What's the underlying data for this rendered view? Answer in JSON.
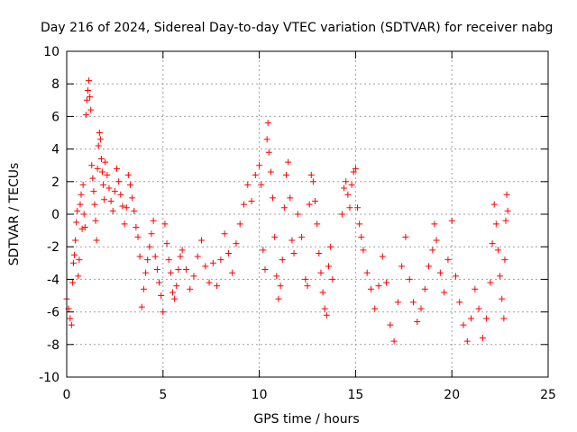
{
  "chart_data": {
    "type": "scatter",
    "title": "Day 216 of 2024, Sidereal Day-to-day VTEC variation (SDTVAR) for receiver nabg",
    "xlabel": "GPS time / hours",
    "ylabel": "SDTVAR / TECUs",
    "xlim": [
      0,
      25
    ],
    "ylim": [
      -10,
      10
    ],
    "xticks": [
      0,
      5,
      10,
      15,
      20,
      25
    ],
    "yticks": [
      -10,
      -8,
      -6,
      -4,
      -2,
      0,
      2,
      4,
      6,
      8,
      10
    ],
    "xtick_labels": [
      "0",
      "5",
      "10",
      "15",
      "20",
      "25"
    ],
    "ytick_labels": [
      "-10",
      "-8",
      "-6",
      "-4",
      "-2",
      "0",
      "2",
      "4",
      "6",
      "8",
      "10"
    ],
    "grid": true,
    "marker": "+",
    "color": "#ff0000",
    "series": [
      {
        "name": "SDTVAR",
        "points": [
          [
            0.0,
            -5.2
          ],
          [
            0.1,
            -5.8
          ],
          [
            0.18,
            -6.4
          ],
          [
            0.25,
            -6.8
          ],
          [
            0.3,
            -4.2
          ],
          [
            0.35,
            -3.0
          ],
          [
            0.4,
            -2.5
          ],
          [
            0.45,
            -1.6
          ],
          [
            0.5,
            -0.5
          ],
          [
            0.55,
            0.2
          ],
          [
            0.6,
            -3.8
          ],
          [
            0.65,
            -2.8
          ],
          [
            0.7,
            0.6
          ],
          [
            0.75,
            1.2
          ],
          [
            0.8,
            -0.9
          ],
          [
            0.85,
            1.8
          ],
          [
            0.9,
            0.0
          ],
          [
            0.95,
            -0.8
          ],
          [
            1.0,
            6.1
          ],
          [
            1.05,
            7.0
          ],
          [
            1.1,
            7.6
          ],
          [
            1.15,
            8.2
          ],
          [
            1.2,
            7.2
          ],
          [
            1.25,
            6.4
          ],
          [
            1.3,
            3.0
          ],
          [
            1.35,
            2.2
          ],
          [
            1.4,
            1.4
          ],
          [
            1.45,
            0.6
          ],
          [
            1.5,
            -0.4
          ],
          [
            1.55,
            -1.6
          ],
          [
            1.6,
            2.8
          ],
          [
            1.65,
            4.2
          ],
          [
            1.7,
            5.0
          ],
          [
            1.75,
            4.6
          ],
          [
            1.8,
            3.4
          ],
          [
            1.85,
            2.6
          ],
          [
            1.9,
            1.8
          ],
          [
            1.95,
            0.9
          ],
          [
            2.0,
            3.2
          ],
          [
            2.1,
            2.4
          ],
          [
            2.2,
            1.6
          ],
          [
            2.3,
            0.8
          ],
          [
            2.4,
            0.2
          ],
          [
            2.5,
            1.4
          ],
          [
            2.6,
            2.8
          ],
          [
            2.7,
            2.0
          ],
          [
            2.8,
            1.2
          ],
          [
            2.9,
            0.5
          ],
          [
            3.0,
            -0.6
          ],
          [
            3.1,
            0.4
          ],
          [
            3.2,
            2.4
          ],
          [
            3.3,
            1.8
          ],
          [
            3.4,
            1.0
          ],
          [
            3.5,
            0.2
          ],
          [
            3.6,
            -0.8
          ],
          [
            3.7,
            -1.4
          ],
          [
            3.8,
            -2.6
          ],
          [
            3.9,
            -5.7
          ],
          [
            4.0,
            -4.6
          ],
          [
            4.1,
            -3.6
          ],
          [
            4.2,
            -2.8
          ],
          [
            4.3,
            -2.0
          ],
          [
            4.4,
            -1.2
          ],
          [
            4.5,
            -0.4
          ],
          [
            4.6,
            -2.6
          ],
          [
            4.7,
            -3.4
          ],
          [
            4.8,
            -4.2
          ],
          [
            4.9,
            -5.0
          ],
          [
            5.0,
            -6.0
          ],
          [
            5.1,
            -0.6
          ],
          [
            5.2,
            -1.8
          ],
          [
            5.3,
            -2.8
          ],
          [
            5.4,
            -3.6
          ],
          [
            5.5,
            -4.8
          ],
          [
            5.6,
            -5.2
          ],
          [
            5.7,
            -4.4
          ],
          [
            5.8,
            -3.4
          ],
          [
            5.9,
            -2.6
          ],
          [
            6.0,
            -2.2
          ],
          [
            6.2,
            -3.4
          ],
          [
            6.4,
            -4.6
          ],
          [
            6.6,
            -3.8
          ],
          [
            6.8,
            -2.6
          ],
          [
            7.0,
            -1.6
          ],
          [
            7.2,
            -3.2
          ],
          [
            7.4,
            -4.2
          ],
          [
            7.6,
            -3.0
          ],
          [
            7.8,
            -4.4
          ],
          [
            8.0,
            -2.8
          ],
          [
            8.2,
            -1.2
          ],
          [
            8.4,
            -2.4
          ],
          [
            8.6,
            -3.6
          ],
          [
            8.8,
            -1.8
          ],
          [
            9.0,
            -0.6
          ],
          [
            9.2,
            0.6
          ],
          [
            9.4,
            1.8
          ],
          [
            9.6,
            0.8
          ],
          [
            9.8,
            2.4
          ],
          [
            10.0,
            3.0
          ],
          [
            10.1,
            1.8
          ],
          [
            10.2,
            -2.2
          ],
          [
            10.3,
            -3.4
          ],
          [
            10.4,
            4.6
          ],
          [
            10.45,
            5.6
          ],
          [
            10.5,
            3.8
          ],
          [
            10.6,
            2.6
          ],
          [
            10.7,
            1.0
          ],
          [
            10.8,
            -1.4
          ],
          [
            10.9,
            -3.8
          ],
          [
            11.0,
            -5.2
          ],
          [
            11.1,
            -4.4
          ],
          [
            11.2,
            -2.8
          ],
          [
            11.3,
            0.4
          ],
          [
            11.4,
            2.4
          ],
          [
            11.5,
            3.2
          ],
          [
            11.6,
            1.0
          ],
          [
            11.7,
            -1.6
          ],
          [
            11.8,
            -2.4
          ],
          [
            12.0,
            0.0
          ],
          [
            12.2,
            -1.4
          ],
          [
            12.4,
            -4.0
          ],
          [
            12.5,
            -4.4
          ],
          [
            12.6,
            0.6
          ],
          [
            12.7,
            2.4
          ],
          [
            12.8,
            2.0
          ],
          [
            12.9,
            0.8
          ],
          [
            13.0,
            -0.6
          ],
          [
            13.1,
            -2.4
          ],
          [
            13.2,
            -3.6
          ],
          [
            13.3,
            -4.8
          ],
          [
            13.4,
            -5.8
          ],
          [
            13.5,
            -6.2
          ],
          [
            13.6,
            -3.2
          ],
          [
            13.7,
            -2.0
          ],
          [
            13.8,
            -4.0
          ],
          [
            14.3,
            0.0
          ],
          [
            14.4,
            1.6
          ],
          [
            14.5,
            2.0
          ],
          [
            14.6,
            1.2
          ],
          [
            14.7,
            0.4
          ],
          [
            14.8,
            1.8
          ],
          [
            14.9,
            2.6
          ],
          [
            15.0,
            2.8
          ],
          [
            15.1,
            0.4
          ],
          [
            15.2,
            -0.6
          ],
          [
            15.3,
            -1.4
          ],
          [
            15.4,
            -2.2
          ],
          [
            15.6,
            -3.6
          ],
          [
            15.8,
            -4.6
          ],
          [
            16.0,
            -5.8
          ],
          [
            16.2,
            -4.4
          ],
          [
            16.4,
            -2.6
          ],
          [
            16.6,
            -4.2
          ],
          [
            16.8,
            -6.8
          ],
          [
            17.0,
            -7.8
          ],
          [
            17.2,
            -5.4
          ],
          [
            17.4,
            -3.2
          ],
          [
            17.6,
            -1.4
          ],
          [
            17.8,
            -4.0
          ],
          [
            18.0,
            -5.4
          ],
          [
            18.2,
            -6.6
          ],
          [
            18.4,
            -5.8
          ],
          [
            18.6,
            -4.6
          ],
          [
            18.8,
            -3.2
          ],
          [
            19.0,
            -2.2
          ],
          [
            19.1,
            -0.6
          ],
          [
            19.2,
            -1.6
          ],
          [
            19.4,
            -3.6
          ],
          [
            19.6,
            -4.8
          ],
          [
            19.8,
            -2.8
          ],
          [
            20.0,
            -0.4
          ],
          [
            20.2,
            -3.8
          ],
          [
            20.4,
            -5.4
          ],
          [
            20.6,
            -6.8
          ],
          [
            20.8,
            -7.8
          ],
          [
            21.0,
            -6.4
          ],
          [
            21.2,
            -4.6
          ],
          [
            21.4,
            -5.8
          ],
          [
            21.6,
            -7.6
          ],
          [
            21.8,
            -6.4
          ],
          [
            22.0,
            -4.2
          ],
          [
            22.1,
            -1.8
          ],
          [
            22.2,
            0.6
          ],
          [
            22.3,
            -0.6
          ],
          [
            22.4,
            -2.2
          ],
          [
            22.5,
            -3.8
          ],
          [
            22.6,
            -5.2
          ],
          [
            22.7,
            -6.4
          ],
          [
            22.75,
            -2.8
          ],
          [
            22.8,
            -0.4
          ],
          [
            22.85,
            1.2
          ],
          [
            22.9,
            0.2
          ]
        ]
      }
    ]
  }
}
